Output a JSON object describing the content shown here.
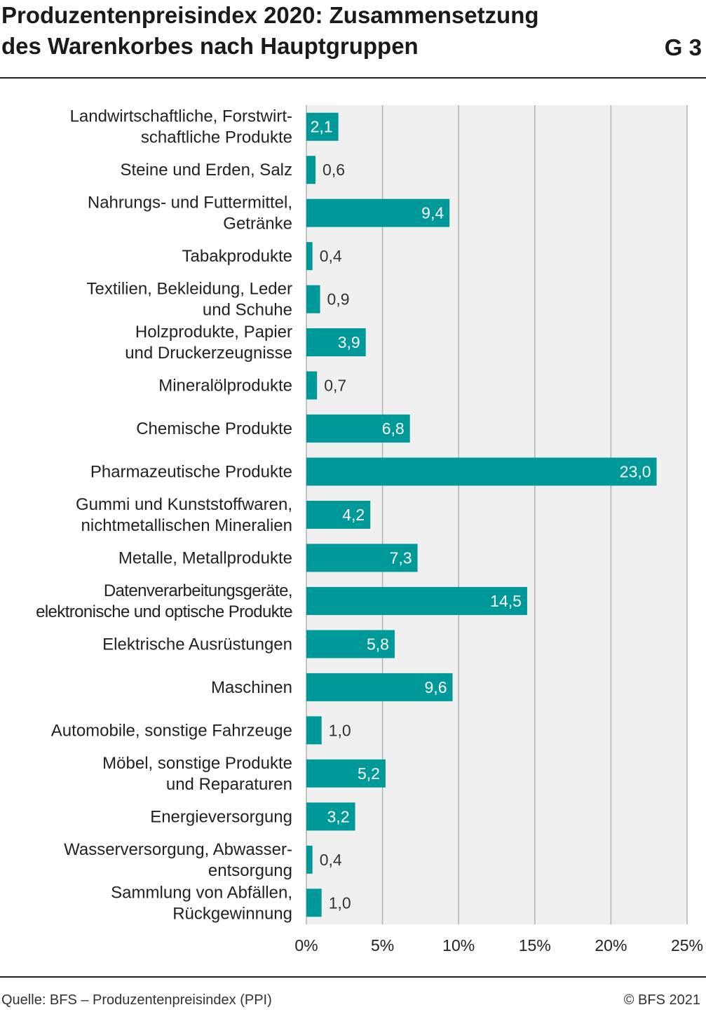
{
  "header": {
    "title_line1": "Produzentenpreisindex 2020: Zusammensetzung",
    "title_line2": "des Warenkorbes nach Hauptgruppen",
    "figure_number": "G 3"
  },
  "footer": {
    "source": "Quelle: BFS – Produzentenpreisindex (PPI)",
    "copyright": "© BFS 2021"
  },
  "colors": {
    "bar": "#00999a",
    "plot_background": "#f0f0f0",
    "grid": "#b3b3b3",
    "label_inside": "#ffffff",
    "label_outside": "#333333"
  },
  "chart_data": {
    "type": "bar",
    "orientation": "horizontal",
    "categories": [
      [
        "Landwirtschaftliche, Forstwirt-",
        "schaftliche Produkte"
      ],
      [
        "Steine und Erden, Salz"
      ],
      [
        "Nahrungs- und Futtermittel,",
        "Getränke"
      ],
      [
        "Tabakprodukte"
      ],
      [
        "Textilien, Bekleidung, Leder",
        "und Schuhe"
      ],
      [
        "Holzprodukte, Papier",
        "und Druckerzeugnisse"
      ],
      [
        "Mineralölprodukte"
      ],
      [
        "Chemische Produkte"
      ],
      [
        "Pharmazeutische Produkte"
      ],
      [
        "Gummi und Kunststoffwaren,",
        "nichtmetallischen Mineralien"
      ],
      [
        "Metalle, Metallprodukte"
      ],
      [
        "Datenverarbeitungsgeräte,",
        "elektronische und optische Produkte"
      ],
      [
        "Elektrische Ausrüstungen"
      ],
      [
        "Maschinen"
      ],
      [
        "Automobile, sonstige Fahrzeuge"
      ],
      [
        "Möbel, sonstige Produkte",
        "und Reparaturen"
      ],
      [
        "Energieversorgung"
      ],
      [
        "Wasserversorgung, Abwasser-",
        "entsorgung"
      ],
      [
        "Sammlung von Abfällen,",
        "Rückgewinnung"
      ]
    ],
    "values": [
      2.1,
      0.6,
      9.4,
      0.4,
      0.9,
      3.9,
      0.7,
      6.8,
      23.0,
      4.2,
      7.3,
      14.5,
      5.8,
      9.6,
      1.0,
      5.2,
      3.2,
      0.4,
      1.0
    ],
    "value_labels": [
      "2,1",
      "0,6",
      "9,4",
      "0,4",
      "0,9",
      "3,9",
      "0,7",
      "6,8",
      "23,0",
      "4,2",
      "7,3",
      "14,5",
      "5,8",
      "9,6",
      "1,0",
      "5,2",
      "3,2",
      "0,4",
      "1,0"
    ],
    "x_ticks": [
      0,
      5,
      10,
      15,
      20,
      25
    ],
    "x_tick_labels": [
      "0%",
      "5%",
      "10%",
      "15%",
      "20%",
      "25%"
    ],
    "xlim": [
      0,
      25
    ],
    "grid": true,
    "legend": "none"
  }
}
